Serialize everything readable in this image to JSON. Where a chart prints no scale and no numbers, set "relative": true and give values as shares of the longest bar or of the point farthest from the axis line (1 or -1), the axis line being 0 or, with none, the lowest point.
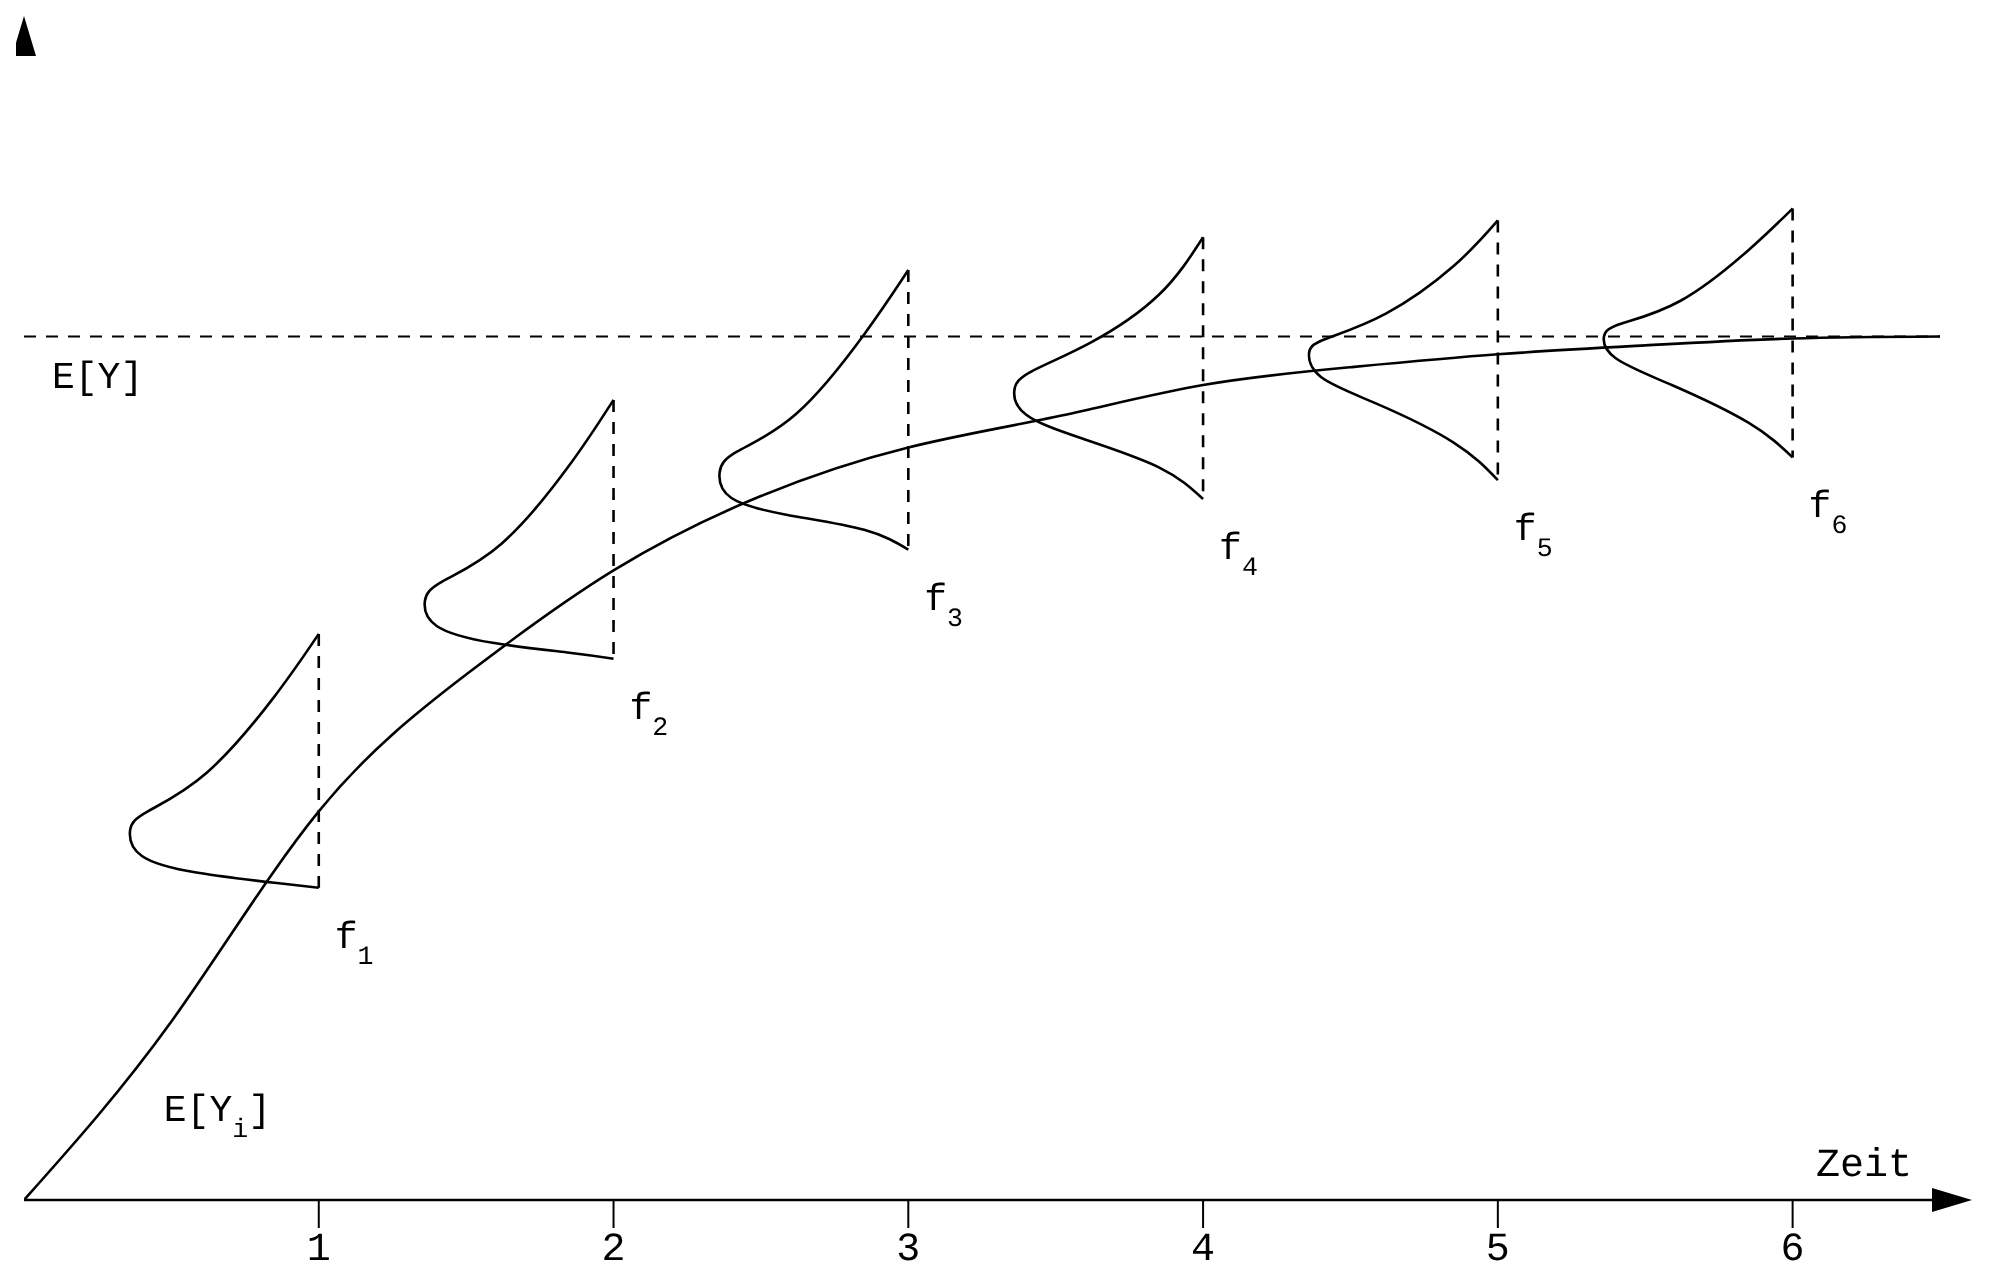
{
  "chart_data": {
    "type": "line",
    "relative": true,
    "xlabel": "Zeit",
    "xlim": [
      0,
      6.5
    ],
    "xticks": [
      1,
      2,
      3,
      4,
      5,
      6
    ],
    "tick_labels": "x",
    "line_style": "solid",
    "marker": "none",
    "series": [
      {
        "color": "#000000",
        "x": [
          0,
          0.5,
          1,
          1.5,
          2,
          2.5,
          3,
          3.5,
          4,
          4.5,
          5,
          5.5,
          6,
          6.5
        ],
        "values": [
          0,
          0.18,
          0.392,
          0.53,
          0.635,
          0.71,
          0.759,
          0.79,
          0.822,
          0.84,
          0.853,
          0.862,
          0.869,
          0.871
        ]
      },
      {
        "color": "#000000",
        "x": [
          1,
          0.85,
          0.62,
          0.42,
          0.36,
          0.4,
          0.59,
          0.85,
          1
        ],
        "values": [
          0.571,
          0.508,
          0.431,
          0.392,
          0.373,
          0.347,
          0.33,
          0.32,
          0.315
        ]
      },
      {
        "color": "#000000",
        "x": [
          2,
          1.85,
          1.62,
          1.42,
          1.36,
          1.4,
          1.59,
          1.85,
          2
        ],
        "values": [
          0.807,
          0.741,
          0.662,
          0.624,
          0.604,
          0.579,
          0.562,
          0.552,
          0.546
        ]
      },
      {
        "color": "#000000",
        "x": [
          3,
          2.85,
          2.62,
          2.42,
          2.36,
          2.4,
          2.59,
          2.85,
          3
        ],
        "values": [
          0.938,
          0.873,
          0.793,
          0.755,
          0.734,
          0.708,
          0.691,
          0.676,
          0.656
        ]
      },
      {
        "color": "#000000",
        "x": [
          4,
          3.85,
          3.62,
          3.42,
          3.36,
          3.4,
          3.59,
          3.85,
          4
        ],
        "values": [
          0.971,
          0.913,
          0.865,
          0.836,
          0.817,
          0.792,
          0.768,
          0.739,
          0.707
        ]
      },
      {
        "color": "#000000",
        "x": [
          5,
          4.85,
          4.62,
          4.42,
          4.36,
          4.4,
          4.59,
          4.85,
          5
        ],
        "values": [
          0.988,
          0.942,
          0.894,
          0.869,
          0.855,
          0.83,
          0.803,
          0.764,
          0.726
        ]
      },
      {
        "color": "#000000",
        "x": [
          6,
          5.85,
          5.62,
          5.42,
          5.36,
          5.4,
          5.59,
          5.85,
          6
        ],
        "values": [
          1,
          0.958,
          0.907,
          0.884,
          0.871,
          0.849,
          0.822,
          0.784,
          0.749
        ]
      },
      {
        "color": "#000000",
        "line_style": "dashed",
        "x": [
          1,
          1
        ],
        "values": [
          0.571,
          0.315
        ]
      },
      {
        "color": "#000000",
        "line_style": "dashed",
        "x": [
          2,
          2
        ],
        "values": [
          0.807,
          0.546
        ]
      },
      {
        "color": "#000000",
        "line_style": "dashed",
        "x": [
          3,
          3
        ],
        "values": [
          0.938,
          0.656
        ]
      },
      {
        "color": "#000000",
        "line_style": "dashed",
        "x": [
          4,
          4
        ],
        "values": [
          0.971,
          0.707
        ]
      },
      {
        "color": "#000000",
        "line_style": "dashed",
        "x": [
          5,
          5
        ],
        "values": [
          0.988,
          0.726
        ]
      },
      {
        "color": "#000000",
        "line_style": "dashed",
        "x": [
          6,
          6
        ],
        "values": [
          1,
          0.749
        ]
      }
    ],
    "ref_lines": [
      {
        "axis": "y",
        "value": 0.871,
        "label": "E[Y]",
        "line_style": "dashed",
        "color": "#000000"
      }
    ],
    "annotations": [
      {
        "text": "E[Y$_{i}$]",
        "x": 0.42,
        "y": 0.14
      },
      {
        "text": "f$_{1}$",
        "x": 1,
        "y": 0.315
      },
      {
        "text": "f$_{2}$",
        "x": 2,
        "y": 0.546
      },
      {
        "text": "f$_{3}$",
        "x": 3,
        "y": 0.656
      },
      {
        "text": "f$_{4}$",
        "x": 4,
        "y": 0.707
      },
      {
        "text": "f$_{5}$",
        "x": 5,
        "y": 0.726
      },
      {
        "text": "f$_{6}$",
        "x": 6,
        "y": 0.749
      }
    ]
  }
}
